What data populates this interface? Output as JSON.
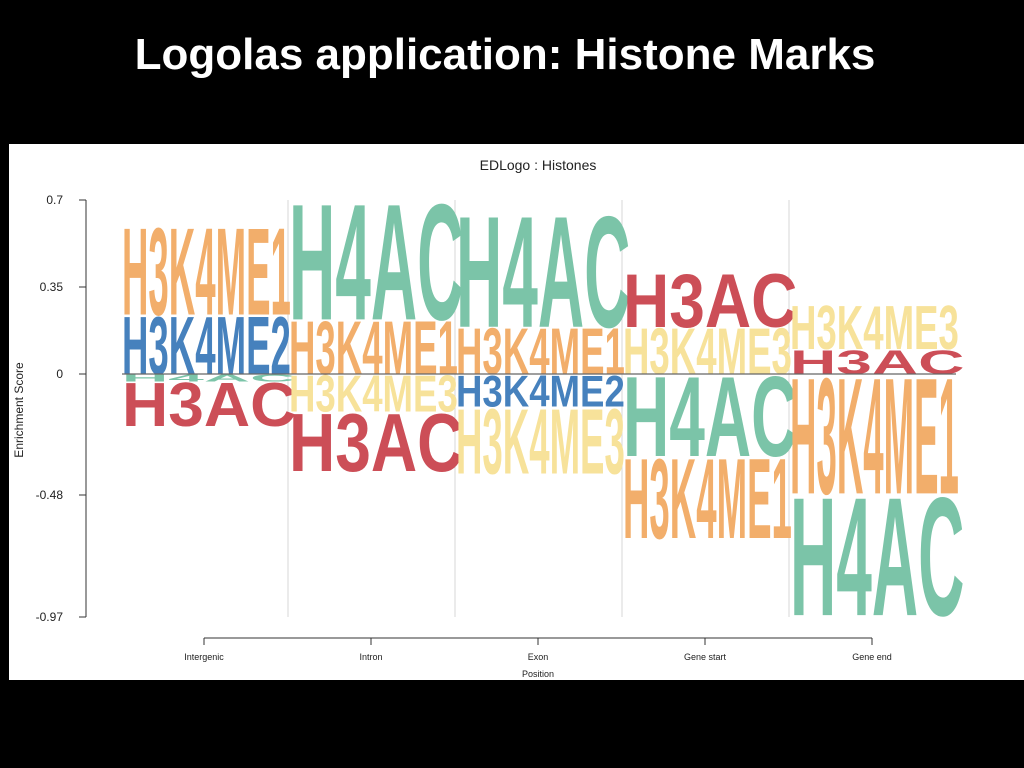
{
  "slide": {
    "title": "Logolas application: Histone Marks"
  },
  "colors": {
    "H3K4ME1": "#F2AE6B",
    "H3K4ME2": "#4681BD",
    "H3K4ME3": "#F7E29A",
    "H3AC": "#CC4E57",
    "H4AC": "#7BC4A8"
  },
  "chart_data": {
    "type": "logo",
    "title": "EDLogo : Histones",
    "xlabel": "Position",
    "ylabel": "Enrichment Score",
    "categories": [
      "Intergenic",
      "Intron",
      "Exon",
      "Gene start",
      "Gene end"
    ],
    "y_ticks": [
      0.7,
      0.35,
      0,
      -0.48,
      -0.97
    ],
    "y_tick_labels": [
      "0.7",
      "0.35",
      "0",
      "-0.48",
      "-0.97"
    ],
    "ylim": [
      -0.97,
      0.7
    ],
    "grid": "vertical separators",
    "positions": [
      {
        "category": "Intergenic",
        "positive": [
          {
            "label": "H3K4ME2",
            "value": 0.24
          },
          {
            "label": "H3K4ME1",
            "value": 0.36
          }
        ],
        "negative": [
          {
            "label": "H4AC",
            "value": 0.03
          },
          {
            "label": "H3AC",
            "value": 0.18
          }
        ]
      },
      {
        "category": "Intron",
        "positive": [
          {
            "label": "H3K4ME1",
            "value": 0.22
          },
          {
            "label": "H4AC",
            "value": 0.48
          }
        ],
        "negative": [
          {
            "label": "H3K4ME3",
            "value": 0.15
          },
          {
            "label": "H3AC",
            "value": 0.24
          }
        ]
      },
      {
        "category": "Exon",
        "positive": [
          {
            "label": "H3K4ME1",
            "value": 0.19
          },
          {
            "label": "H4AC",
            "value": 0.46
          }
        ],
        "negative": [
          {
            "label": "H3K4ME2",
            "value": 0.13
          },
          {
            "label": "H3K4ME3",
            "value": 0.27
          }
        ]
      },
      {
        "category": "Gene start",
        "positive": [
          {
            "label": "H3K4ME3",
            "value": 0.19
          },
          {
            "label": "H3AC",
            "value": 0.22
          }
        ],
        "negative": [
          {
            "label": "H4AC",
            "value": 0.33
          },
          {
            "label": "H3K4ME1",
            "value": 0.33
          }
        ]
      },
      {
        "category": "Gene end",
        "positive": [
          {
            "label": "H3AC",
            "value": 0.1
          },
          {
            "label": "H3K4ME3",
            "value": 0.18
          }
        ],
        "negative": [
          {
            "label": "H3K4ME1",
            "value": 0.48
          },
          {
            "label": "H4AC",
            "value": 0.49
          }
        ]
      }
    ]
  }
}
